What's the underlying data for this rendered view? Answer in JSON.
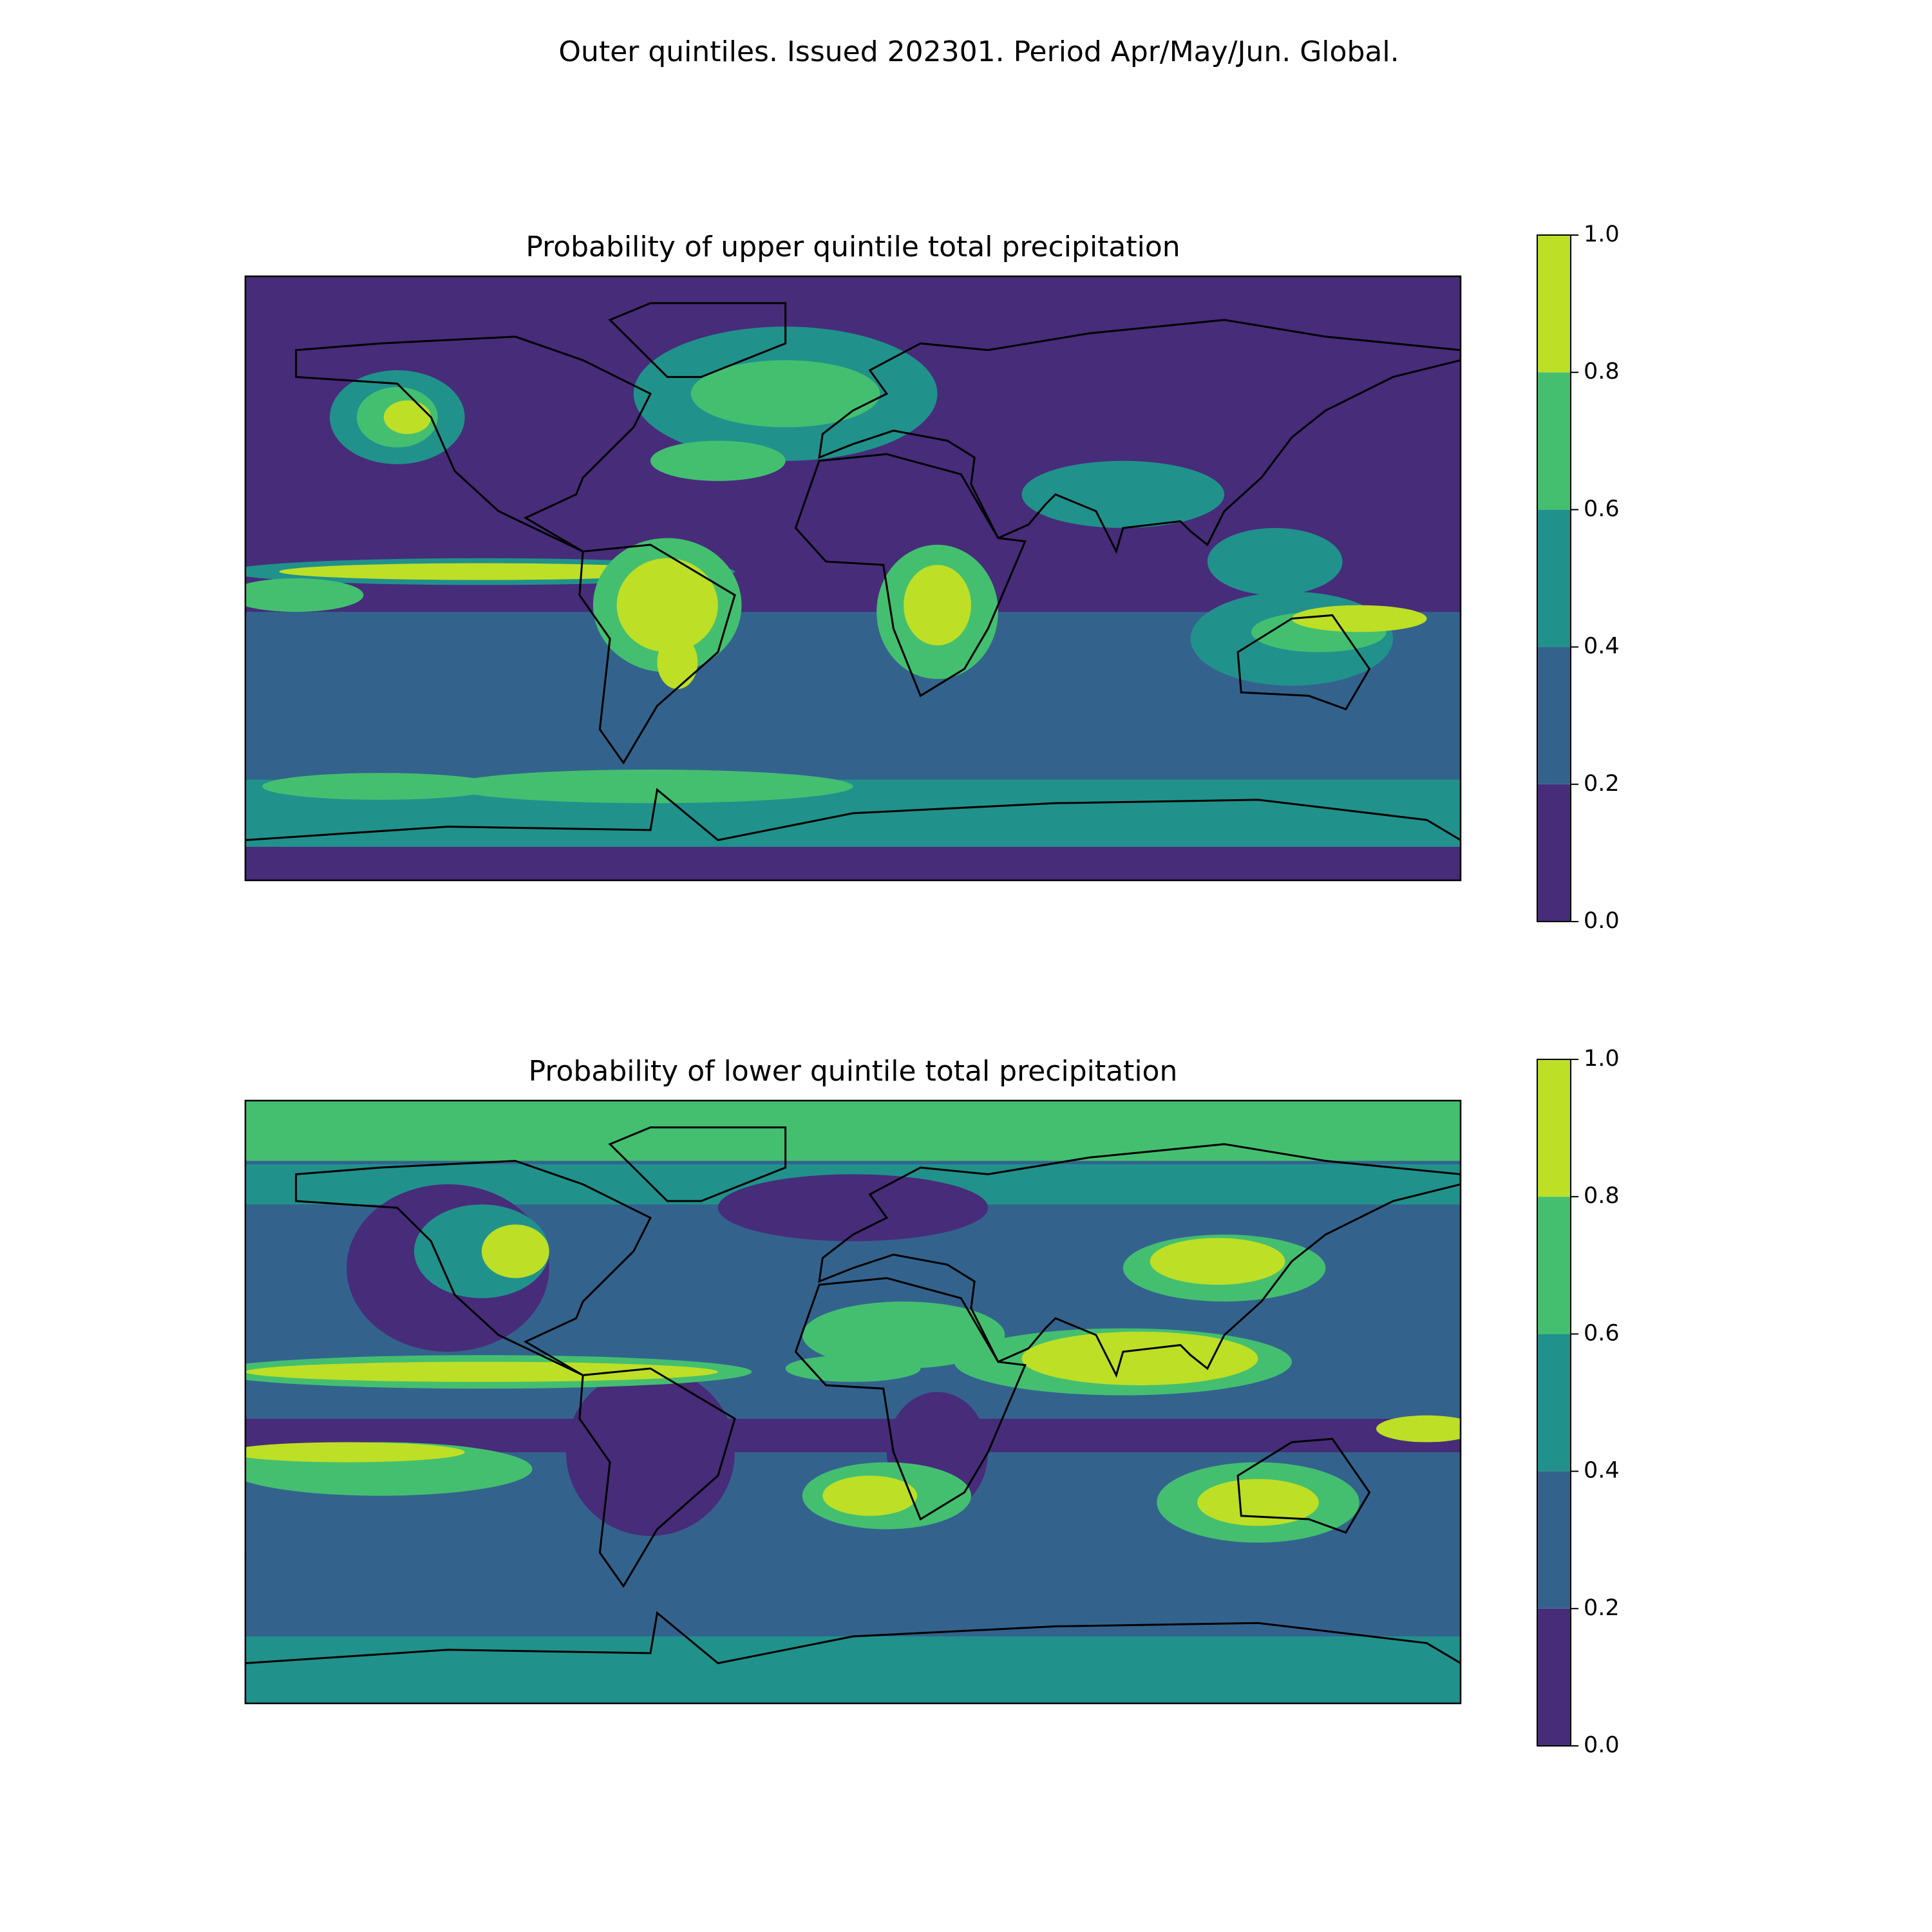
{
  "title": "Outer quintiles. Issued 202301. Period Apr/May/Jun. Global.",
  "panels": [
    {
      "title": "Probability of upper quintile total precipitation",
      "colorbar": {
        "ticks": [
          {
            "value": 0,
            "label": "0.0"
          },
          0.2,
          0.4,
          0.6,
          0.8,
          {
            "value": 1,
            "label": "1.0"
          }
        ],
        "colors": [
          "#472c7a",
          "#33638d",
          "#21918c",
          "#44bf70",
          "#bddf26"
        ]
      }
    },
    {
      "title": "Probability of lower quintile total precipitation",
      "colorbar": {
        "ticks": [
          {
            "value": 0,
            "label": "0.0"
          },
          0.2,
          0.4,
          0.6,
          0.8,
          {
            "value": 1,
            "label": "1.0"
          }
        ],
        "colors": [
          "#472c7a",
          "#33638d",
          "#21918c",
          "#44bf70",
          "#bddf26"
        ]
      }
    }
  ]
}
